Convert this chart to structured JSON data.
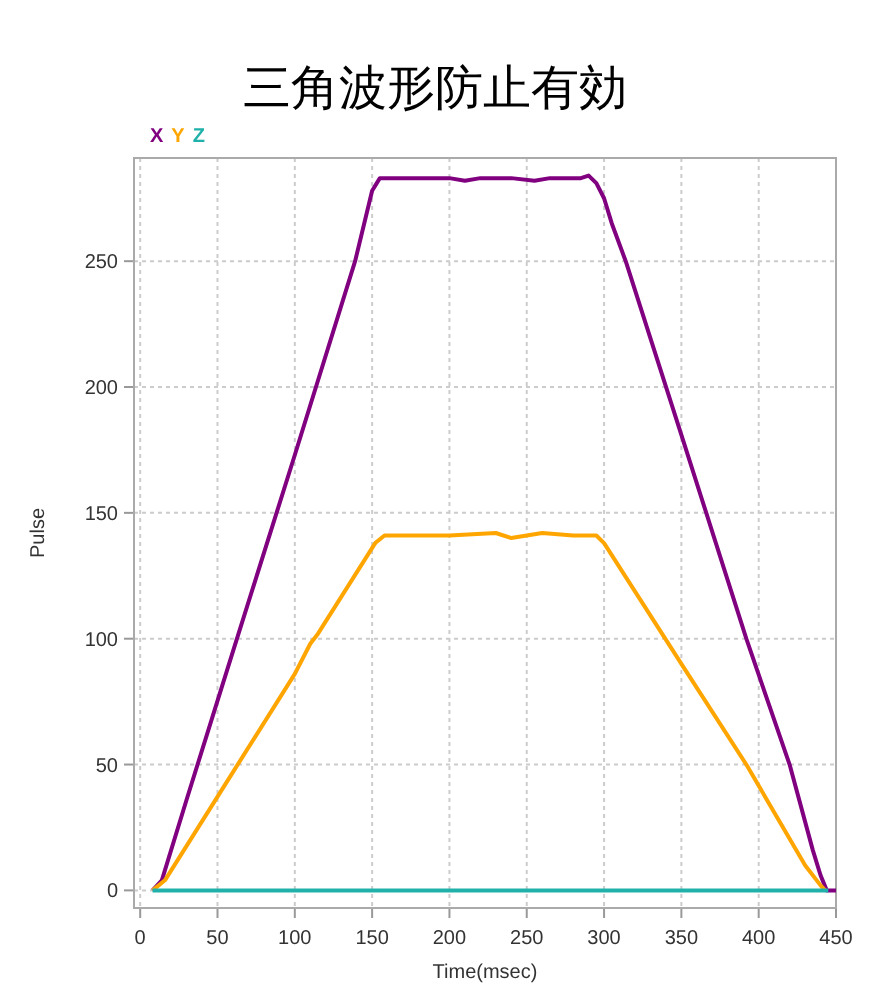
{
  "chart_data": {
    "type": "line",
    "title": "三角波形防止有効",
    "xlabel": "Time(msec)",
    "ylabel": "Pulse",
    "xlim": [
      -4,
      450
    ],
    "ylim": [
      -7,
      291
    ],
    "xticks": [
      0,
      50,
      100,
      150,
      200,
      250,
      300,
      350,
      400,
      450
    ],
    "yticks": [
      0,
      50,
      100,
      150,
      200,
      250
    ],
    "grid": true,
    "legend": "top left",
    "series": [
      {
        "name": "X",
        "color": "#800080",
        "x": [
          8,
          14,
          30,
          60,
          100,
          139,
          150,
          155,
          180,
          200,
          210,
          220,
          240,
          255,
          265,
          285,
          290,
          295,
          300,
          305,
          314,
          350,
          392,
          420,
          435,
          440,
          444,
          450
        ],
        "values": [
          0,
          4,
          36,
          95,
          173,
          250,
          278,
          283,
          283,
          283,
          282,
          283,
          283,
          282,
          283,
          283,
          284,
          281,
          275,
          265,
          250,
          181,
          100,
          50,
          16,
          6,
          0,
          0
        ]
      },
      {
        "name": "Y",
        "color": "#ffa500",
        "x": [
          8,
          16,
          60,
          100,
          110,
          115,
          152,
          158,
          200,
          230,
          240,
          260,
          280,
          295,
          300,
          350,
          392,
          430,
          440,
          443
        ],
        "values": [
          0,
          4,
          47,
          86,
          98,
          102,
          138,
          141,
          141,
          142,
          140,
          142,
          141,
          141,
          138,
          90,
          50,
          10,
          2,
          0
        ]
      },
      {
        "name": "Z",
        "color": "#20b2aa",
        "x": [
          8,
          445
        ],
        "values": [
          0,
          0
        ]
      }
    ]
  }
}
